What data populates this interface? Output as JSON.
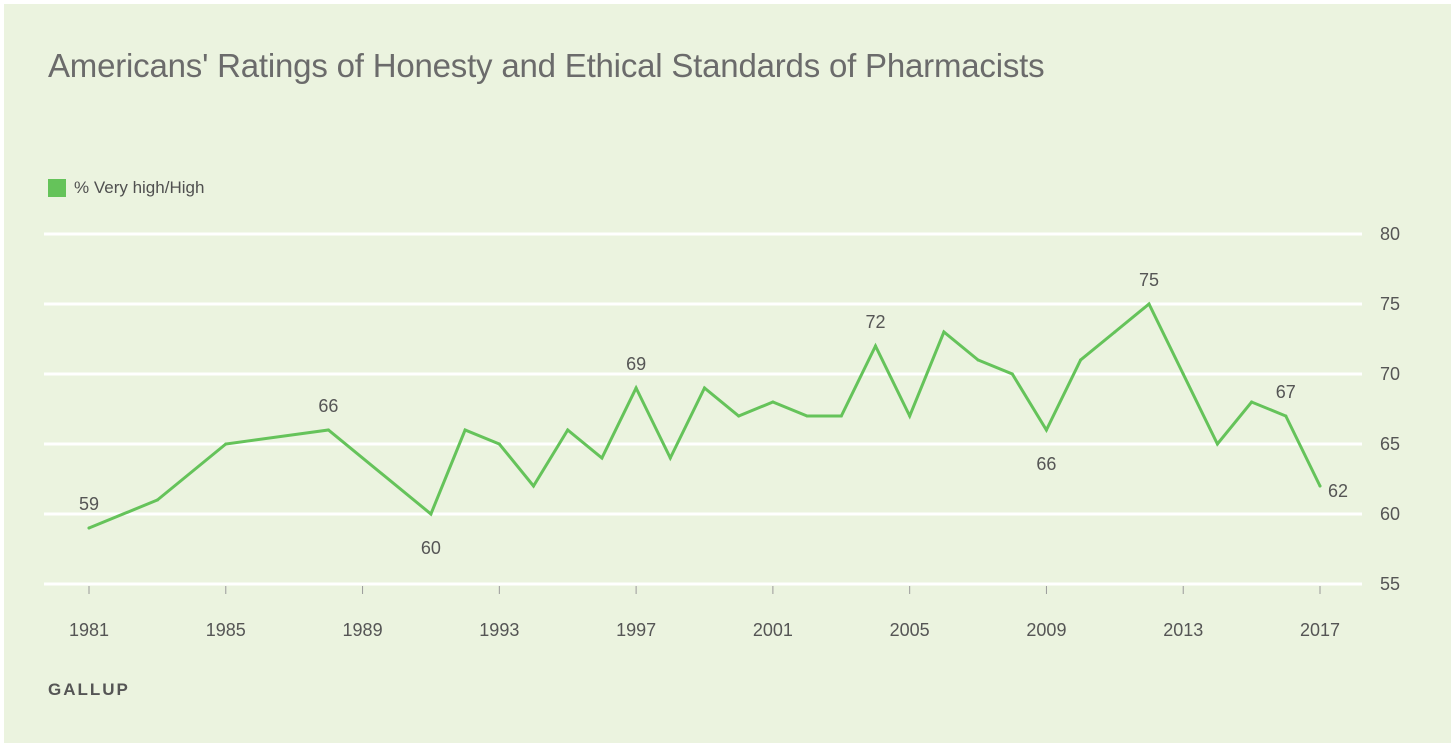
{
  "chart_data": {
    "type": "line",
    "title": "Americans' Ratings of Honesty and Ethical Standards of Pharmacists",
    "source": "GALLUP",
    "legend_position": "top-left",
    "grid": true,
    "ylim": [
      55,
      80
    ],
    "y_ticks": [
      55,
      60,
      65,
      70,
      75,
      80
    ],
    "x_ticks": [
      1981,
      1985,
      1989,
      1993,
      1997,
      2001,
      2005,
      2009,
      2013,
      2017
    ],
    "xlim": [
      1981,
      2017
    ],
    "colors": {
      "line": "#65c35a",
      "grid": "#ffffff",
      "background": "#ebf3df"
    },
    "series": [
      {
        "name": "% Very high/High",
        "x": [
          1981,
          1983,
          1985,
          1988,
          1991,
          1992,
          1993,
          1994,
          1995,
          1996,
          1997,
          1998,
          1999,
          2000,
          2001,
          2002,
          2003,
          2004,
          2005,
          2006,
          2007,
          2008,
          2009,
          2010,
          2011,
          2012,
          2013,
          2014,
          2015,
          2016,
          2017
        ],
        "values": [
          59,
          61,
          65,
          66,
          60,
          66,
          65,
          62,
          66,
          64,
          69,
          64,
          69,
          67,
          68,
          67,
          67,
          72,
          67,
          73,
          71,
          70,
          66,
          71,
          73,
          75,
          70,
          65,
          68,
          67,
          62
        ]
      }
    ],
    "annotations": [
      {
        "x": 1981,
        "value": 59,
        "text": "59",
        "position": "above"
      },
      {
        "x": 1988,
        "value": 66,
        "text": "66",
        "position": "above"
      },
      {
        "x": 1991,
        "value": 60,
        "text": "60",
        "position": "below"
      },
      {
        "x": 1997,
        "value": 69,
        "text": "69",
        "position": "above"
      },
      {
        "x": 2004,
        "value": 72,
        "text": "72",
        "position": "above"
      },
      {
        "x": 2009,
        "value": 66,
        "text": "66",
        "position": "below"
      },
      {
        "x": 2012,
        "value": 75,
        "text": "75",
        "position": "above"
      },
      {
        "x": 2016,
        "value": 67,
        "text": "67",
        "position": "above"
      },
      {
        "x": 2017,
        "value": 62,
        "text": "62",
        "position": "right"
      }
    ]
  }
}
